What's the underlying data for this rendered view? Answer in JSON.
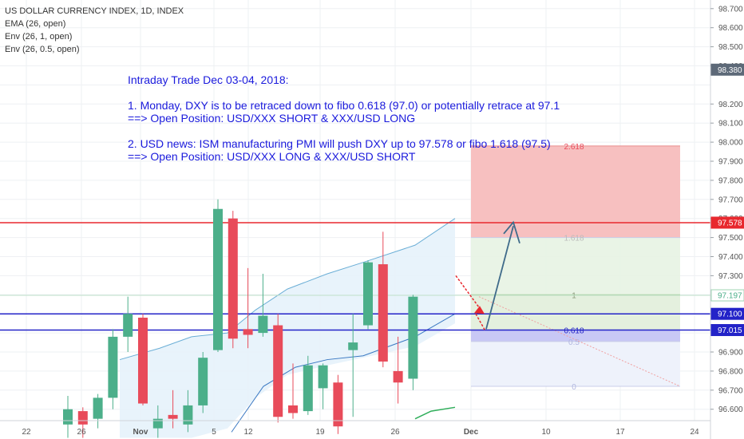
{
  "legend": {
    "title": "US DOLLAR CURRENCY INDEX, 1D, INDEX",
    "ema": "EMA (26, open)",
    "env1": "Env (26, 1, open)",
    "env2": "Env (26, 0.5, open)"
  },
  "annotation": {
    "heading": "Intraday Trade Dec 03-04, 2018:",
    "p1_line1": "1. Monday, DXY is to be retraced down to fibo 0.618 (97.0) or potentially retrace at 97.1",
    "p1_line2": "==> Open Position: USD/XXX SHORT & XXX/USD LONG",
    "p2_line1": "2. USD news: ISM manufacturing PMI will push DXY up to 97.578 or fibo 1.618 (97.5)",
    "p2_line2": "==> Open Position: USD/XXX LONG & XXX/USD SHORT"
  },
  "colors": {
    "up": "#4caf8a",
    "down": "#e84b5a",
    "red_line": "#e8282e",
    "blue_line": "#2323c8",
    "envelope_fill": "#e6f2fb",
    "envelope_line": "#6aaed6",
    "fibo_red": "#f7c0c0",
    "fibo_green": "#e7f3e3",
    "fibo_blue": "#c8c8f5",
    "fibo_lightblue": "#eef2fb",
    "arrow_blue": "#3f6b8a"
  },
  "chart_data": {
    "type": "candlestick",
    "y_ticks": [
      "98.700",
      "98.600",
      "98.500",
      "98.400",
      "98.200",
      "98.100",
      "98.000",
      "97.900",
      "97.800",
      "97.700",
      "97.600",
      "97.500",
      "97.400",
      "97.300",
      "96.900",
      "96.800",
      "96.700",
      "96.600"
    ],
    "x_ticks": [
      "22",
      "26",
      "Nov",
      "5",
      "12",
      "19",
      "26",
      "Dec",
      "10",
      "17",
      "24"
    ],
    "price_labels": [
      {
        "text": "98.380",
        "value": 98.38,
        "style": "dark"
      },
      {
        "text": "97.578",
        "value": 97.578,
        "style": "red"
      },
      {
        "text": "97.197",
        "value": 97.197,
        "style": "green"
      },
      {
        "text": "97.100",
        "value": 97.1,
        "style": "blue"
      },
      {
        "text": "97.015",
        "value": 97.015,
        "style": "blue"
      }
    ],
    "horizontal_lines": [
      {
        "value": 97.578,
        "color": "red"
      },
      {
        "value": 97.1,
        "color": "blue"
      },
      {
        "value": 97.015,
        "color": "blue"
      }
    ],
    "candles": [
      {
        "open": 96.52,
        "high": 96.67,
        "low": 96.45,
        "close": 96.6
      },
      {
        "open": 96.59,
        "high": 96.61,
        "low": 96.45,
        "close": 96.52
      },
      {
        "open": 96.55,
        "high": 96.68,
        "low": 96.5,
        "close": 96.66
      },
      {
        "open": 96.66,
        "high": 97.02,
        "low": 96.6,
        "close": 96.98
      },
      {
        "open": 96.98,
        "high": 97.19,
        "low": 96.9,
        "close": 97.1
      },
      {
        "open": 97.08,
        "high": 97.1,
        "low": 96.62,
        "close": 96.63
      },
      {
        "open": 96.5,
        "high": 96.62,
        "low": 96.45,
        "close": 96.55
      },
      {
        "open": 96.57,
        "high": 96.7,
        "low": 96.5,
        "close": 96.55
      },
      {
        "open": 96.52,
        "high": 96.7,
        "low": 96.48,
        "close": 96.62
      },
      {
        "open": 96.62,
        "high": 96.9,
        "low": 96.58,
        "close": 96.87
      },
      {
        "open": 96.91,
        "high": 97.7,
        "low": 96.9,
        "close": 97.65
      },
      {
        "open": 97.6,
        "high": 97.64,
        "low": 96.92,
        "close": 96.97
      },
      {
        "open": 97.02,
        "high": 97.34,
        "low": 96.92,
        "close": 96.99
      },
      {
        "open": 97.0,
        "high": 97.31,
        "low": 96.98,
        "close": 97.09
      },
      {
        "open": 97.04,
        "high": 97.1,
        "low": 96.53,
        "close": 96.56
      },
      {
        "open": 96.62,
        "high": 96.84,
        "low": 96.55,
        "close": 96.58
      },
      {
        "open": 96.59,
        "high": 96.88,
        "low": 96.57,
        "close": 96.83
      },
      {
        "open": 96.71,
        "high": 96.84,
        "low": 96.6,
        "close": 96.83
      },
      {
        "open": 96.74,
        "high": 96.78,
        "low": 96.47,
        "close": 96.51
      },
      {
        "open": 96.91,
        "high": 97.1,
        "low": 96.56,
        "close": 96.95
      },
      {
        "open": 97.04,
        "high": 97.38,
        "low": 97.02,
        "close": 97.37
      },
      {
        "open": 97.36,
        "high": 97.53,
        "low": 96.82,
        "close": 96.85
      },
      {
        "open": 96.8,
        "high": 96.98,
        "low": 96.63,
        "close": 96.74
      },
      {
        "open": 96.76,
        "high": 97.2,
        "low": 96.7,
        "close": 97.19
      }
    ],
    "fibonacci": [
      {
        "level": "2.618",
        "value": 97.98
      },
      {
        "level": "1.618",
        "value": 97.5
      },
      {
        "level": "1",
        "value": 97.2
      },
      {
        "level": "0.618",
        "value": 97.015
      },
      {
        "level": "0.5",
        "value": 96.955
      },
      {
        "level": "0",
        "value": 96.72
      }
    ]
  }
}
